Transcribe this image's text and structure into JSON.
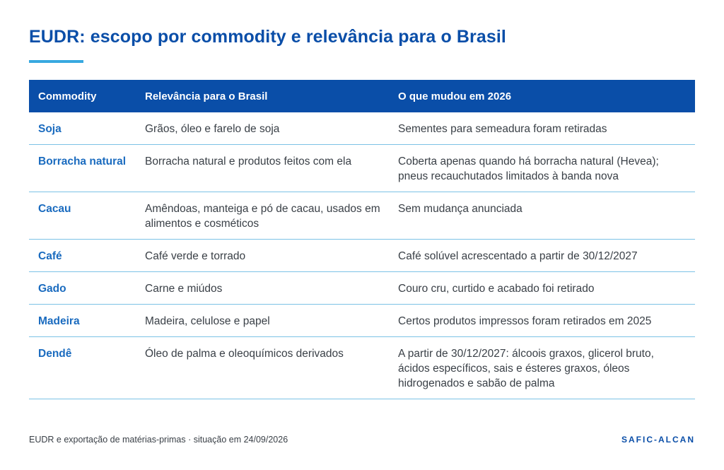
{
  "title": "EUDR: escopo por commodity e relevância para o Brasil",
  "table": {
    "headers": [
      "Commodity",
      "Relevância para o Brasil",
      "O que mudou em 2026"
    ],
    "rows": [
      {
        "commodity": "Soja",
        "relevance": "Grãos, óleo e farelo de soja",
        "change": "Sementes para semeadura foram retiradas"
      },
      {
        "commodity": "Borracha natural",
        "relevance": "Borracha natural e produtos feitos com ela",
        "change": "Coberta apenas quando há borracha natural (Hevea); pneus recauchutados limitados à banda nova"
      },
      {
        "commodity": "Cacau",
        "relevance": "Amêndoas, manteiga e pó de cacau, usados em alimentos e cosméticos",
        "change": "Sem mudança anunciada"
      },
      {
        "commodity": "Café",
        "relevance": "Café verde e torrado",
        "change": "Café solúvel acrescentado a partir de 30/12/2027"
      },
      {
        "commodity": "Gado",
        "relevance": "Carne e miúdos",
        "change": "Couro cru, curtido e acabado foi retirado"
      },
      {
        "commodity": "Madeira",
        "relevance": "Madeira, celulose e papel",
        "change": "Certos produtos impressos foram retirados em 2025"
      },
      {
        "commodity": "Dendê",
        "relevance": "Óleo de palma e oleoquímicos derivados",
        "change": "A partir de 30/12/2027: álcoois graxos, glicerol bruto, ácidos específicos, sais e ésteres graxos, óleos hidrogenados e sabão de palma"
      }
    ]
  },
  "footer": {
    "source": "EUDR e exportação de matérias-primas · situação em 24/09/2026",
    "brand": "SAFIC-ALCAN"
  },
  "colors": {
    "brand_blue": "#0a4ea8",
    "accent_blue": "#38a9e0",
    "commodity_text": "#1a6bbf",
    "row_divider": "#7cc2e6"
  }
}
